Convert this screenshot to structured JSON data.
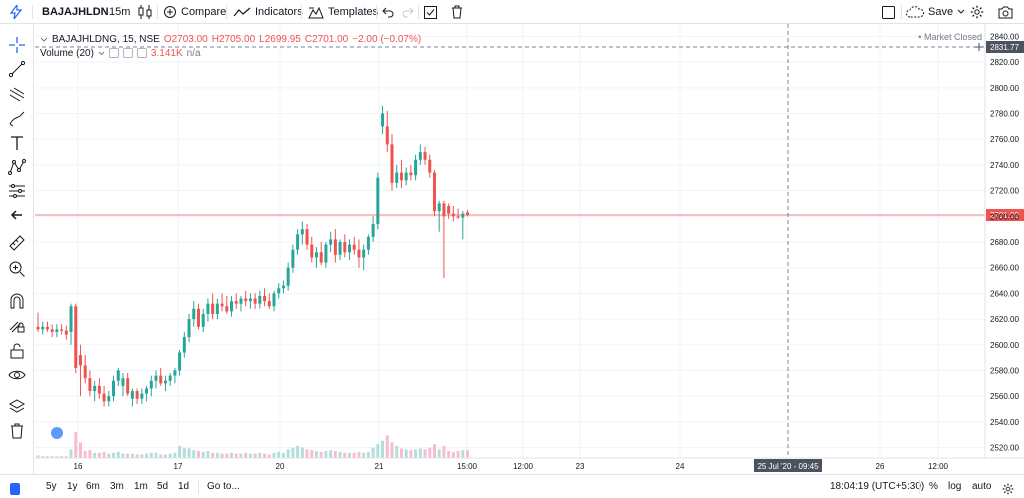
{
  "toolbar": {
    "symbol": "BAJAJHLDN",
    "interval": "15m",
    "compare_label": "Compare",
    "indicators_label": "Indicators",
    "templates_label": "Templates",
    "save_label": "Save",
    "icons": [
      "chart-style-candles-icon",
      "compare-icon",
      "indicators-icon",
      "templates-icon",
      "undo-icon",
      "redo-icon",
      "checkbox-icon",
      "trash-icon",
      "fullscreen-icon",
      "cloud-icon",
      "gear-icon",
      "camera-icon"
    ]
  },
  "legend": {
    "series_name": "BAJAJHLDNG, 15, NSE",
    "o_label": "O",
    "o_value": "2703.00",
    "h_label": "H",
    "h_value": "2705.00",
    "l_label": "L",
    "l_value": "2699.95",
    "c_label": "C",
    "c_value": "2701.00",
    "change": "−2.00 (−0.07%)",
    "volume_label": "Volume (20)",
    "volume_value": "3.141K",
    "volume_na": "n/a",
    "market_status": "Market Closed"
  },
  "crosshair": {
    "price_label": "2831.77",
    "time_label": "25 Jul '20 - 09:45"
  },
  "colors": {
    "up": "#26a69a",
    "down": "#ef5350",
    "up_volume": "#b2dfdb",
    "down_volume": "#f8bbd0",
    "last_price_line": "#ef5350",
    "grid": "#f0f3fa"
  },
  "chart_data": {
    "type": "candlestick",
    "symbol": "BAJAJHLDNG",
    "interval": "15",
    "exchange": "NSE",
    "last_price": 2701.0,
    "ylim": [
      2515,
      2845
    ],
    "y_ticks": [
      2520,
      2540,
      2560,
      2580,
      2600,
      2620,
      2640,
      2660,
      2680,
      2700,
      2720,
      2740,
      2760,
      2780,
      2800,
      2820,
      2840
    ],
    "x_ticks": [
      "16",
      "17",
      "20",
      "21",
      "15:00",
      "12:00",
      "23",
      "24",
      "26",
      "12:00"
    ],
    "grid": true,
    "candles": [
      {
        "o": 2614,
        "h": 2625,
        "l": 2610,
        "c": 2612
      },
      {
        "o": 2612,
        "h": 2618,
        "l": 2608,
        "c": 2614
      },
      {
        "o": 2614,
        "h": 2618,
        "l": 2610,
        "c": 2612
      },
      {
        "o": 2612,
        "h": 2616,
        "l": 2606,
        "c": 2610
      },
      {
        "o": 2610,
        "h": 2616,
        "l": 2606,
        "c": 2612
      },
      {
        "o": 2612,
        "h": 2616,
        "l": 2608,
        "c": 2611
      },
      {
        "o": 2611,
        "h": 2615,
        "l": 2604,
        "c": 2608
      },
      {
        "o": 2610,
        "h": 2632,
        "l": 2600,
        "c": 2630
      },
      {
        "o": 2630,
        "h": 2632,
        "l": 2578,
        "c": 2582
      },
      {
        "o": 2592,
        "h": 2600,
        "l": 2560,
        "c": 2584
      },
      {
        "o": 2584,
        "h": 2592,
        "l": 2570,
        "c": 2574
      },
      {
        "o": 2574,
        "h": 2580,
        "l": 2560,
        "c": 2564
      },
      {
        "o": 2564,
        "h": 2572,
        "l": 2556,
        "c": 2568
      },
      {
        "o": 2568,
        "h": 2574,
        "l": 2558,
        "c": 2562
      },
      {
        "o": 2562,
        "h": 2568,
        "l": 2552,
        "c": 2556
      },
      {
        "o": 2556,
        "h": 2564,
        "l": 2552,
        "c": 2560
      },
      {
        "o": 2560,
        "h": 2576,
        "l": 2556,
        "c": 2572
      },
      {
        "o": 2572,
        "h": 2582,
        "l": 2568,
        "c": 2580
      },
      {
        "o": 2568,
        "h": 2578,
        "l": 2560,
        "c": 2574
      },
      {
        "o": 2574,
        "h": 2578,
        "l": 2560,
        "c": 2562
      },
      {
        "o": 2558,
        "h": 2566,
        "l": 2552,
        "c": 2564
      },
      {
        "o": 2564,
        "h": 2566,
        "l": 2554,
        "c": 2558
      },
      {
        "o": 2558,
        "h": 2566,
        "l": 2554,
        "c": 2562
      },
      {
        "o": 2562,
        "h": 2568,
        "l": 2556,
        "c": 2566
      },
      {
        "o": 2566,
        "h": 2576,
        "l": 2560,
        "c": 2572
      },
      {
        "o": 2572,
        "h": 2580,
        "l": 2566,
        "c": 2576
      },
      {
        "o": 2576,
        "h": 2582,
        "l": 2568,
        "c": 2570
      },
      {
        "o": 2570,
        "h": 2576,
        "l": 2564,
        "c": 2572
      },
      {
        "o": 2572,
        "h": 2578,
        "l": 2568,
        "c": 2576
      },
      {
        "o": 2576,
        "h": 2582,
        "l": 2570,
        "c": 2580
      },
      {
        "o": 2580,
        "h": 2596,
        "l": 2576,
        "c": 2594
      },
      {
        "o": 2594,
        "h": 2610,
        "l": 2590,
        "c": 2606
      },
      {
        "o": 2606,
        "h": 2624,
        "l": 2602,
        "c": 2620
      },
      {
        "o": 2620,
        "h": 2634,
        "l": 2614,
        "c": 2628
      },
      {
        "o": 2628,
        "h": 2632,
        "l": 2612,
        "c": 2614
      },
      {
        "o": 2614,
        "h": 2628,
        "l": 2610,
        "c": 2624
      },
      {
        "o": 2624,
        "h": 2636,
        "l": 2618,
        "c": 2632
      },
      {
        "o": 2632,
        "h": 2640,
        "l": 2620,
        "c": 2624
      },
      {
        "o": 2624,
        "h": 2636,
        "l": 2620,
        "c": 2632
      },
      {
        "o": 2632,
        "h": 2640,
        "l": 2626,
        "c": 2630
      },
      {
        "o": 2630,
        "h": 2638,
        "l": 2624,
        "c": 2626
      },
      {
        "o": 2626,
        "h": 2638,
        "l": 2622,
        "c": 2634
      },
      {
        "o": 2634,
        "h": 2640,
        "l": 2628,
        "c": 2632
      },
      {
        "o": 2632,
        "h": 2638,
        "l": 2626,
        "c": 2636
      },
      {
        "o": 2636,
        "h": 2642,
        "l": 2630,
        "c": 2634
      },
      {
        "o": 2634,
        "h": 2640,
        "l": 2628,
        "c": 2636
      },
      {
        "o": 2636,
        "h": 2640,
        "l": 2628,
        "c": 2632
      },
      {
        "o": 2632,
        "h": 2642,
        "l": 2628,
        "c": 2638
      },
      {
        "o": 2638,
        "h": 2644,
        "l": 2630,
        "c": 2634
      },
      {
        "o": 2634,
        "h": 2640,
        "l": 2628,
        "c": 2630
      },
      {
        "o": 2630,
        "h": 2642,
        "l": 2626,
        "c": 2640
      },
      {
        "o": 2640,
        "h": 2648,
        "l": 2636,
        "c": 2644
      },
      {
        "o": 2644,
        "h": 2650,
        "l": 2640,
        "c": 2646
      },
      {
        "o": 2646,
        "h": 2664,
        "l": 2642,
        "c": 2660
      },
      {
        "o": 2660,
        "h": 2678,
        "l": 2656,
        "c": 2674
      },
      {
        "o": 2674,
        "h": 2690,
        "l": 2670,
        "c": 2686
      },
      {
        "o": 2686,
        "h": 2696,
        "l": 2678,
        "c": 2690
      },
      {
        "o": 2690,
        "h": 2694,
        "l": 2674,
        "c": 2678
      },
      {
        "o": 2678,
        "h": 2684,
        "l": 2664,
        "c": 2668
      },
      {
        "o": 2668,
        "h": 2676,
        "l": 2660,
        "c": 2672
      },
      {
        "o": 2672,
        "h": 2680,
        "l": 2662,
        "c": 2664
      },
      {
        "o": 2664,
        "h": 2680,
        "l": 2660,
        "c": 2678
      },
      {
        "o": 2678,
        "h": 2688,
        "l": 2672,
        "c": 2682
      },
      {
        "o": 2682,
        "h": 2690,
        "l": 2664,
        "c": 2670
      },
      {
        "o": 2670,
        "h": 2682,
        "l": 2666,
        "c": 2680
      },
      {
        "o": 2680,
        "h": 2686,
        "l": 2668,
        "c": 2672
      },
      {
        "o": 2672,
        "h": 2682,
        "l": 2666,
        "c": 2678
      },
      {
        "o": 2678,
        "h": 2684,
        "l": 2670,
        "c": 2674
      },
      {
        "o": 2674,
        "h": 2682,
        "l": 2660,
        "c": 2668
      },
      {
        "o": 2668,
        "h": 2678,
        "l": 2658,
        "c": 2674
      },
      {
        "o": 2674,
        "h": 2686,
        "l": 2670,
        "c": 2684
      },
      {
        "o": 2684,
        "h": 2700,
        "l": 2680,
        "c": 2694
      },
      {
        "o": 2694,
        "h": 2734,
        "l": 2690,
        "c": 2730
      },
      {
        "o": 2770,
        "h": 2786,
        "l": 2764,
        "c": 2780
      },
      {
        "o": 2770,
        "h": 2782,
        "l": 2750,
        "c": 2756
      },
      {
        "o": 2756,
        "h": 2764,
        "l": 2720,
        "c": 2726
      },
      {
        "o": 2726,
        "h": 2740,
        "l": 2722,
        "c": 2734
      },
      {
        "o": 2734,
        "h": 2744,
        "l": 2722,
        "c": 2728
      },
      {
        "o": 2728,
        "h": 2738,
        "l": 2724,
        "c": 2734
      },
      {
        "o": 2734,
        "h": 2740,
        "l": 2728,
        "c": 2732
      },
      {
        "o": 2732,
        "h": 2748,
        "l": 2728,
        "c": 2744
      },
      {
        "o": 2744,
        "h": 2756,
        "l": 2740,
        "c": 2750
      },
      {
        "o": 2750,
        "h": 2754,
        "l": 2740,
        "c": 2744
      },
      {
        "o": 2744,
        "h": 2748,
        "l": 2730,
        "c": 2734
      },
      {
        "o": 2734,
        "h": 2736,
        "l": 2700,
        "c": 2704
      },
      {
        "o": 2704,
        "h": 2712,
        "l": 2688,
        "c": 2710
      },
      {
        "o": 2710,
        "h": 2712,
        "l": 2652,
        "c": 2700
      },
      {
        "o": 2708,
        "h": 2710,
        "l": 2698,
        "c": 2702
      },
      {
        "o": 2702,
        "h": 2708,
        "l": 2696,
        "c": 2700
      },
      {
        "o": 2700,
        "h": 2706,
        "l": 2698,
        "c": 2699
      },
      {
        "o": 2699,
        "h": 2704,
        "l": 2682,
        "c": 2702
      },
      {
        "o": 2703,
        "h": 2705,
        "l": 2699.95,
        "c": 2701
      }
    ],
    "volume": [
      0.3,
      0.2,
      0.2,
      0.2,
      0.2,
      0.2,
      0.2,
      1.0,
      3.0,
      1.8,
      0.8,
      0.9,
      0.6,
      0.6,
      0.7,
      0.5,
      0.6,
      0.7,
      0.5,
      0.5,
      0.5,
      0.4,
      0.4,
      0.5,
      0.6,
      0.6,
      0.4,
      0.4,
      0.5,
      0.6,
      1.4,
      1.2,
      1.1,
      0.9,
      0.8,
      0.7,
      0.8,
      0.6,
      0.6,
      0.5,
      0.5,
      0.6,
      0.5,
      0.5,
      0.6,
      0.5,
      0.5,
      0.6,
      0.5,
      0.4,
      0.6,
      0.7,
      0.6,
      1.0,
      1.2,
      1.4,
      1.2,
      1.0,
      0.9,
      0.8,
      0.7,
      0.8,
      0.9,
      0.8,
      0.7,
      0.6,
      0.6,
      0.6,
      0.7,
      0.6,
      0.7,
      1.2,
      1.6,
      2.0,
      2.6,
      1.8,
      1.4,
      1.1,
      1.0,
      0.9,
      1.0,
      1.1,
      1.0,
      1.2,
      1.6,
      1.0,
      1.4,
      0.8,
      0.7,
      0.8,
      0.9,
      0.9
    ]
  },
  "bottom": {
    "ranges": [
      "5y",
      "1y",
      "6m",
      "3m",
      "1m",
      "5d",
      "1d"
    ],
    "goto_label": "Go to...",
    "time_display": "18:04:19 (UTC+5:30)",
    "percent_label": "%",
    "log_label": "log",
    "auto_label": "auto"
  }
}
